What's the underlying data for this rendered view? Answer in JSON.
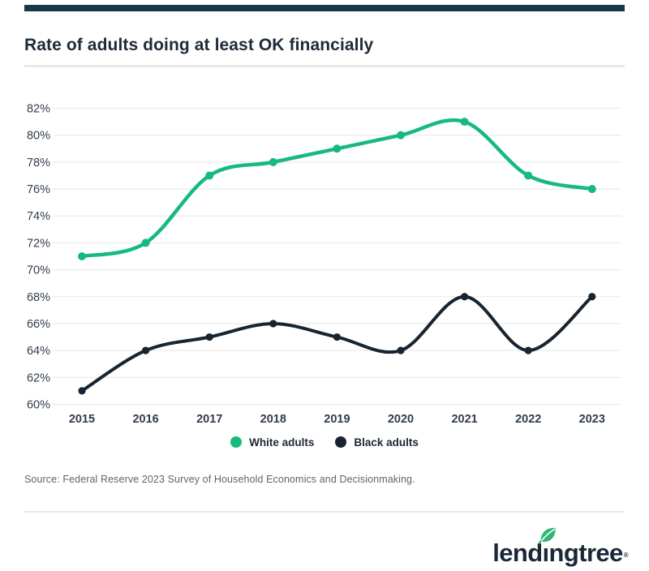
{
  "top_bar": {
    "color": "#173748"
  },
  "header": {
    "title": "Rate of adults doing at least OK financially"
  },
  "chart_data": {
    "type": "line",
    "title": "Rate of adults doing at least OK financially",
    "categories": [
      "2015",
      "2016",
      "2017",
      "2018",
      "2019",
      "2020",
      "2021",
      "2022",
      "2023"
    ],
    "series": [
      {
        "name": "White adults",
        "color": "#17ba7d",
        "values": [
          71,
          72,
          77,
          78,
          79,
          80,
          81,
          77,
          76
        ]
      },
      {
        "name": "Black adults",
        "color": "#182430",
        "values": [
          61,
          64,
          65,
          66,
          65,
          64,
          68,
          64,
          68
        ]
      }
    ],
    "ylim": [
      60,
      82
    ],
    "y_tick_values": [
      82,
      80,
      78,
      76,
      74,
      72,
      70,
      68,
      66,
      64,
      62,
      60
    ],
    "y_tick_labels": [
      "82%",
      "80%",
      "78%",
      "76%",
      "74%",
      "72%",
      "70%",
      "68%",
      "66%",
      "64%",
      "62%",
      "60%"
    ],
    "grid": true,
    "gridline_color": "#ececec",
    "axis_label_color": "#323d49",
    "legend_position": "bottom"
  },
  "source": {
    "text": "Source: Federal Reserve 2023 Survey of Household Economics and Decisionmaking."
  },
  "logo": {
    "brand": "lendingtree",
    "pre": "lend",
    "dotless_i": "ı",
    "post": "ngtree",
    "registered": "®",
    "leaf_color": "#2eb673",
    "text_color": "#1b2838"
  }
}
